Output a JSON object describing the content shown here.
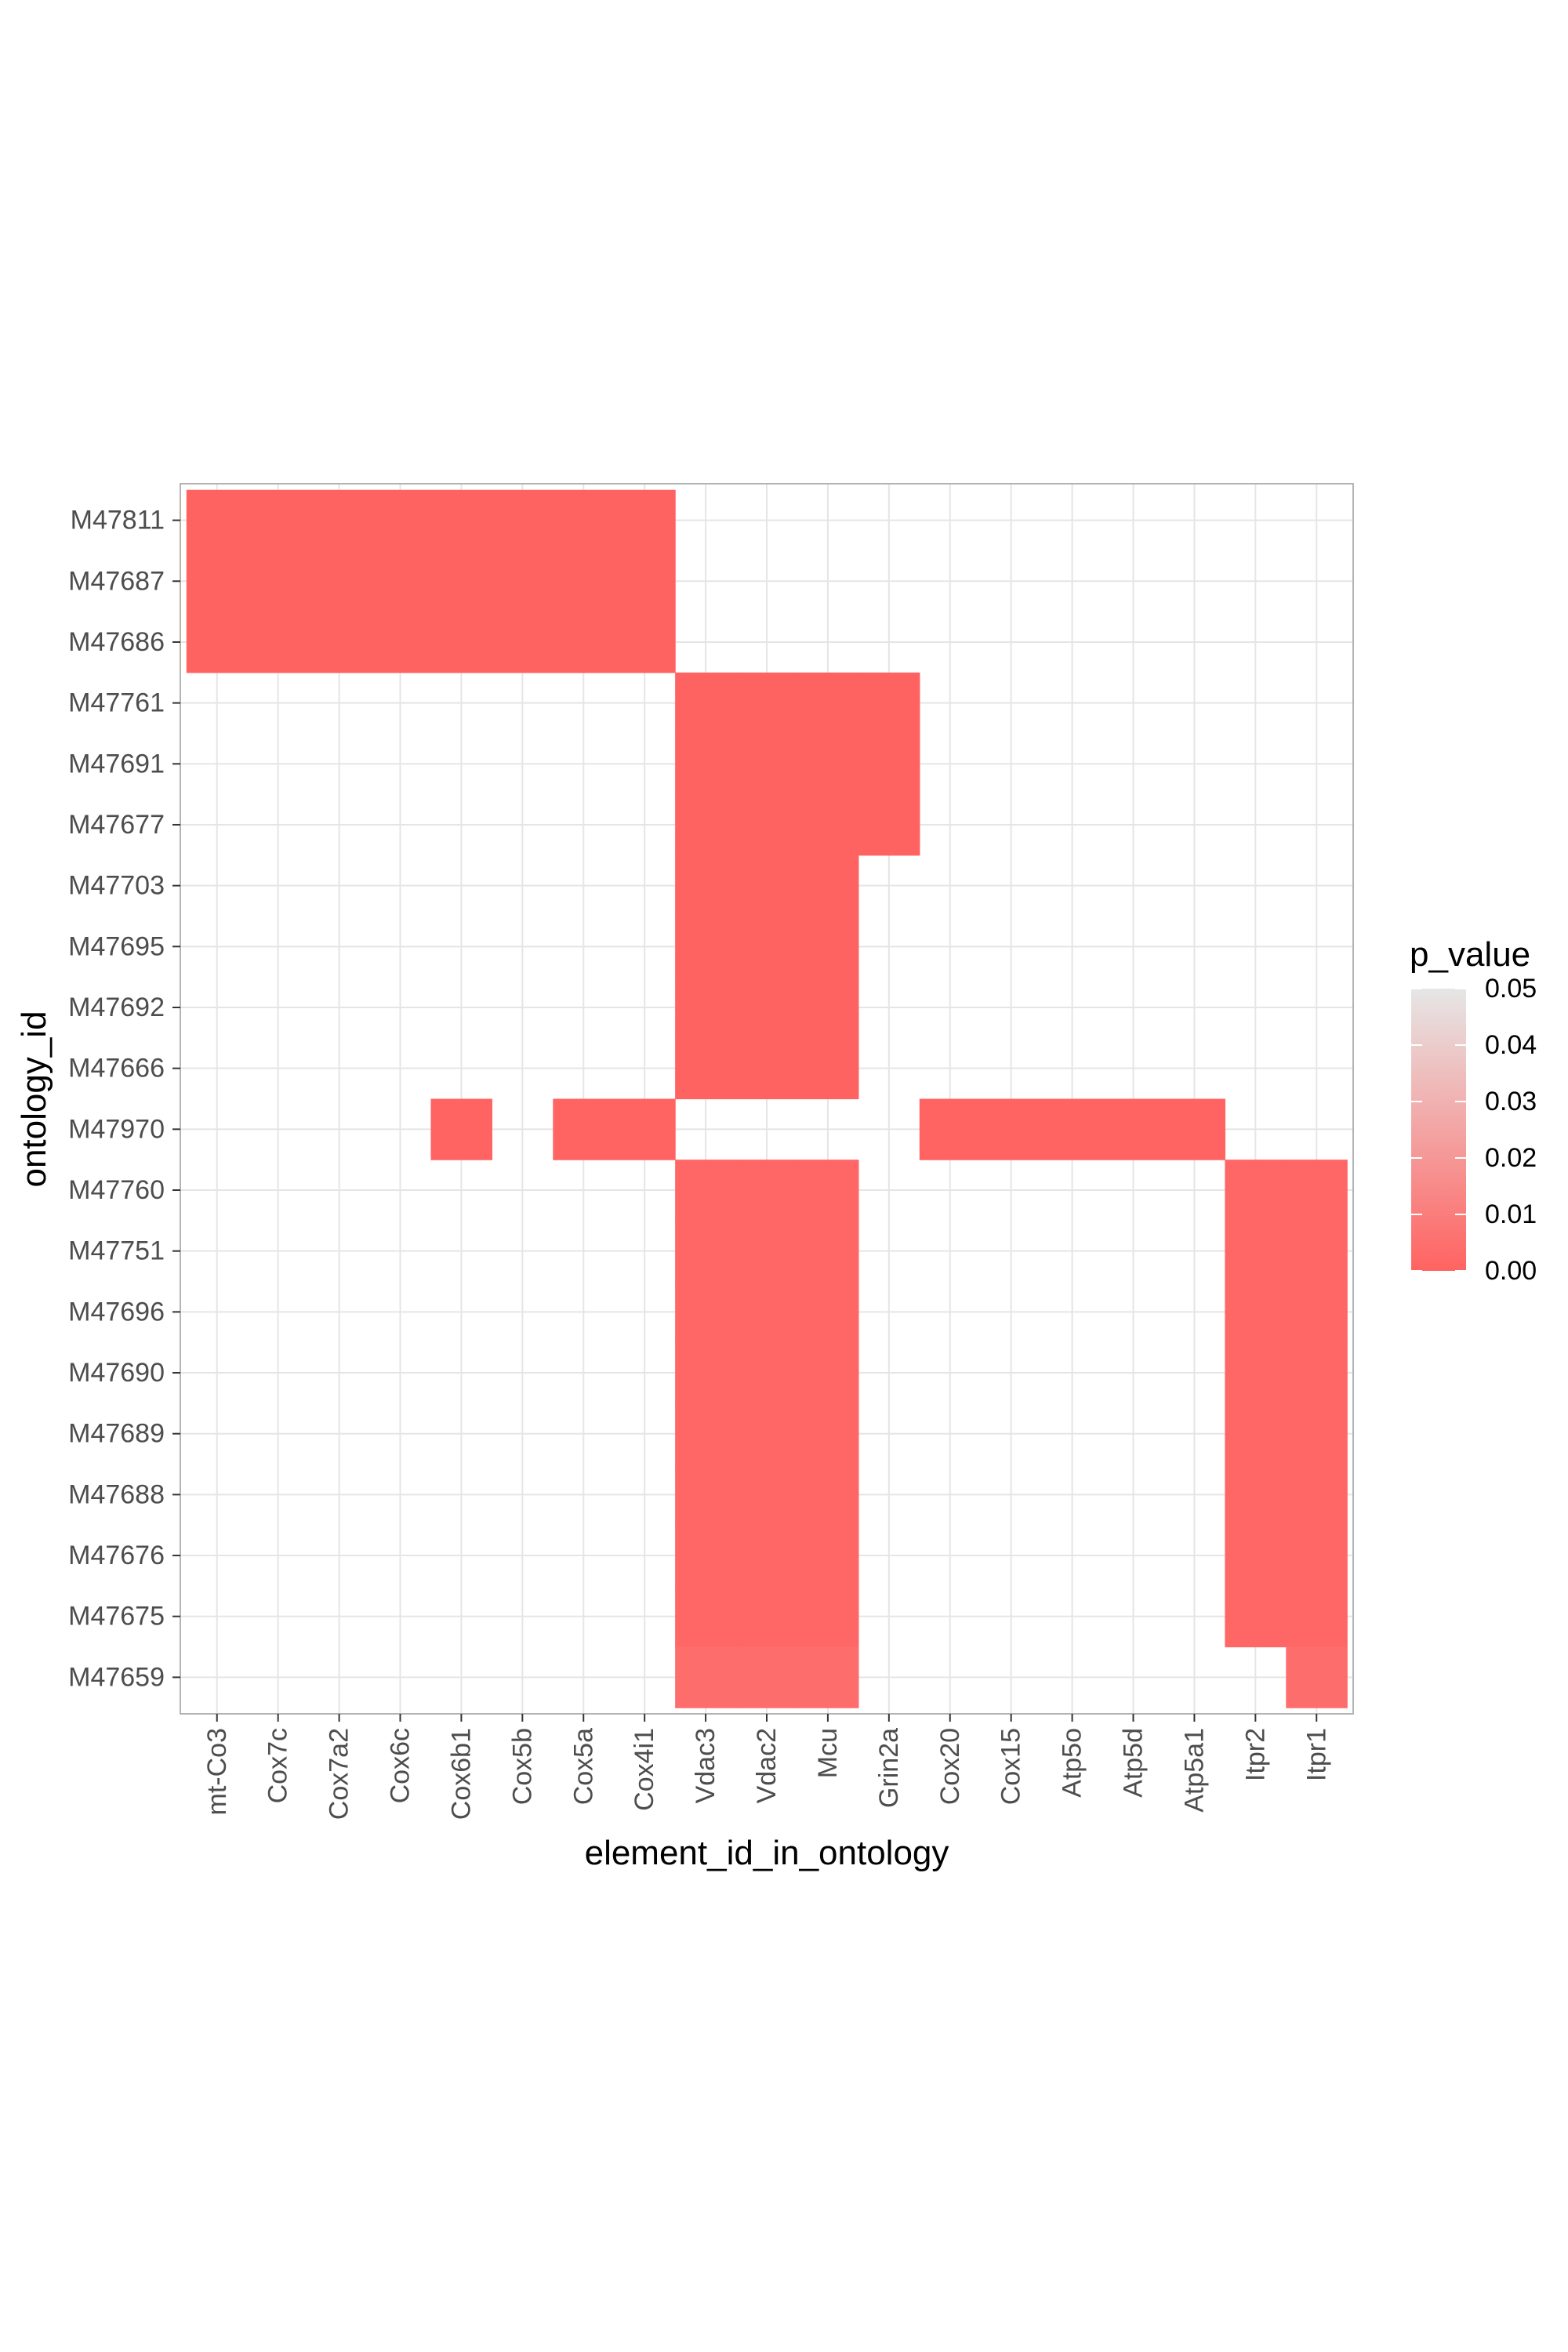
{
  "chart_data": {
    "type": "heatmap",
    "x": [
      "mt-Co3",
      "Cox7c",
      "Cox7a2",
      "Cox6c",
      "Cox6b1",
      "Cox5b",
      "Cox5a",
      "Cox4i1",
      "Vdac3",
      "Vdac2",
      "Mcu",
      "Grin2a",
      "Cox20",
      "Cox15",
      "Atp5o",
      "Atp5d",
      "Atp5a1",
      "Itpr2",
      "Itpr1"
    ],
    "y": [
      "M47811",
      "M47687",
      "M47686",
      "M47761",
      "M47691",
      "M47677",
      "M47703",
      "M47695",
      "M47692",
      "M47666",
      "M47970",
      "M47760",
      "M47751",
      "M47696",
      "M47690",
      "M47689",
      "M47688",
      "M47676",
      "M47675",
      "M47659"
    ],
    "xlabel": "element_id_in_ontology",
    "ylabel": "ontology_id",
    "legend": {
      "title": "p_value",
      "position": "right",
      "range": [
        0,
        0.05
      ],
      "ticks": [
        "0.05",
        "0.04",
        "0.03",
        "0.02",
        "0.01",
        "0.00"
      ],
      "color_low": "#ff6361",
      "color_high": "#e6e6e6"
    },
    "grid": true,
    "cells": [
      {
        "row": "M47811",
        "cols": [
          "mt-Co3",
          "Cox7c",
          "Cox7a2",
          "Cox6c",
          "Cox6b1",
          "Cox5b",
          "Cox5a",
          "Cox4i1"
        ],
        "p": 0.0001
      },
      {
        "row": "M47687",
        "cols": [
          "mt-Co3",
          "Cox7c",
          "Cox7a2",
          "Cox6c",
          "Cox6b1",
          "Cox5b",
          "Cox5a",
          "Cox4i1"
        ],
        "p": 0.0001
      },
      {
        "row": "M47686",
        "cols": [
          "mt-Co3",
          "Cox7c",
          "Cox7a2",
          "Cox6c",
          "Cox6b1",
          "Cox5b",
          "Cox5a",
          "Cox4i1"
        ],
        "p": 0.0001
      },
      {
        "row": "M47761",
        "cols": [
          "Vdac3",
          "Vdac2",
          "Mcu",
          "Grin2a"
        ],
        "p": 0.0001
      },
      {
        "row": "M47691",
        "cols": [
          "Vdac3",
          "Vdac2",
          "Mcu",
          "Grin2a"
        ],
        "p": 0.0001
      },
      {
        "row": "M47677",
        "cols": [
          "Vdac3",
          "Vdac2",
          "Mcu",
          "Grin2a"
        ],
        "p": 0.0001
      },
      {
        "row": "M47703",
        "cols": [
          "Vdac3",
          "Vdac2",
          "Mcu"
        ],
        "p": 0.0001
      },
      {
        "row": "M47695",
        "cols": [
          "Vdac3",
          "Vdac2",
          "Mcu"
        ],
        "p": 0.0001
      },
      {
        "row": "M47692",
        "cols": [
          "Vdac3",
          "Vdac2",
          "Mcu"
        ],
        "p": 0.0001
      },
      {
        "row": "M47666",
        "cols": [
          "Vdac3",
          "Vdac2",
          "Mcu"
        ],
        "p": 0.0001
      },
      {
        "row": "M47970",
        "cols": [
          "Cox6b1",
          "Cox5a",
          "Cox4i1",
          "Cox20",
          "Cox15",
          "Atp5o",
          "Atp5d",
          "Atp5a1"
        ],
        "p": 0.0005
      },
      {
        "row": "M47760",
        "cols": [
          "Vdac3",
          "Vdac2",
          "Mcu",
          "Itpr2",
          "Itpr1"
        ],
        "p": 0.0015
      },
      {
        "row": "M47751",
        "cols": [
          "Vdac3",
          "Vdac2",
          "Mcu",
          "Itpr2",
          "Itpr1"
        ],
        "p": 0.0015
      },
      {
        "row": "M47696",
        "cols": [
          "Vdac3",
          "Vdac2",
          "Mcu",
          "Itpr2",
          "Itpr1"
        ],
        "p": 0.0015
      },
      {
        "row": "M47690",
        "cols": [
          "Vdac3",
          "Vdac2",
          "Mcu",
          "Itpr2",
          "Itpr1"
        ],
        "p": 0.0015
      },
      {
        "row": "M47689",
        "cols": [
          "Vdac3",
          "Vdac2",
          "Mcu",
          "Itpr2",
          "Itpr1"
        ],
        "p": 0.0015
      },
      {
        "row": "M47688",
        "cols": [
          "Vdac3",
          "Vdac2",
          "Mcu",
          "Itpr2",
          "Itpr1"
        ],
        "p": 0.0015
      },
      {
        "row": "M47676",
        "cols": [
          "Vdac3",
          "Vdac2",
          "Mcu",
          "Itpr2",
          "Itpr1"
        ],
        "p": 0.0015
      },
      {
        "row": "M47675",
        "cols": [
          "Vdac3",
          "Vdac2",
          "Mcu",
          "Itpr2",
          "Itpr1"
        ],
        "p": 0.0015
      },
      {
        "row": "M47659",
        "cols": [
          "Vdac3",
          "Vdac2",
          "Mcu",
          "Itpr1"
        ],
        "p": 0.004
      }
    ]
  }
}
